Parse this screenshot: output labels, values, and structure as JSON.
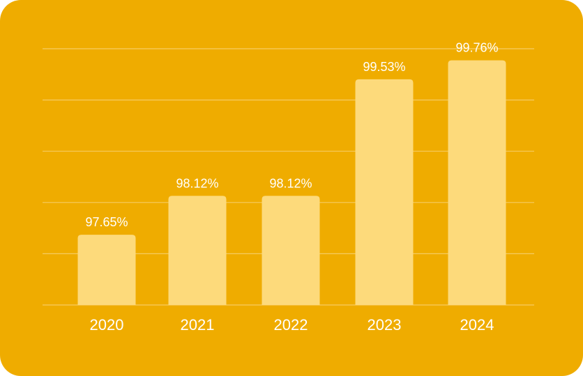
{
  "chart_data": {
    "type": "bar",
    "categories": [
      "2020",
      "2021",
      "2022",
      "2023",
      "2024"
    ],
    "values": [
      97.65,
      98.12,
      98.12,
      99.53,
      99.76
    ],
    "data_labels": [
      "97.65%",
      "98.12%",
      "98.12%",
      "99.53%",
      "99.76%"
    ],
    "title": "",
    "xlabel": "",
    "ylabel": "",
    "ylim": [
      96.8,
      99.9
    ],
    "grid": true,
    "legend": "none"
  },
  "colors": {
    "background": "#EFAC00",
    "bar": "#FDDA7B",
    "gridline": "#F6CB63",
    "text": "#FFFFFF"
  }
}
